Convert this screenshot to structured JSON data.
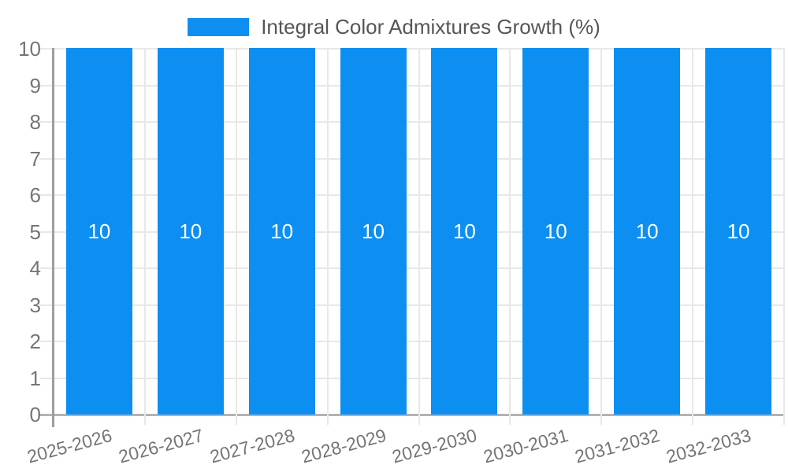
{
  "chart_data": {
    "type": "bar",
    "title": "Integral Color Admixtures Growth (%)",
    "categories": [
      "2025-2026",
      "2026-2027",
      "2027-2028",
      "2028-2029",
      "2029-2030",
      "2030-2031",
      "2031-2032",
      "2032-2033"
    ],
    "series": [
      {
        "name": "Integral Color Admixtures Growth (%)",
        "values": [
          10,
          10,
          10,
          10,
          10,
          10,
          10,
          10
        ],
        "data_labels": [
          "10",
          "10",
          "10",
          "10",
          "10",
          "10",
          "10",
          "10"
        ]
      }
    ],
    "xlabel": "",
    "ylabel": "",
    "ylim": [
      0,
      10
    ],
    "yticks": [
      0,
      1,
      2,
      3,
      4,
      5,
      6,
      7,
      8,
      9,
      10
    ],
    "grid": true,
    "legend_position": "top"
  },
  "legend": {
    "label": "Integral Color Admixtures Growth (%)"
  },
  "colors": {
    "bar": "#0d8ff2",
    "grid_line": "#e8e8e8",
    "zero_line": "#b3b3b3",
    "axis_line": "#9e9e9e",
    "tick_label": "#757575",
    "legend_text": "#565656",
    "bar_label": "#ffffff",
    "background": "#ffffff"
  }
}
